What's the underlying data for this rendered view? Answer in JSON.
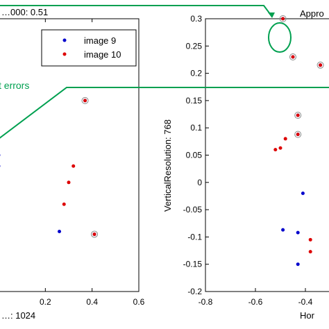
{
  "chart_data": [
    {
      "type": "scatter",
      "xlabel": "…: 1024",
      "title": "…000: 0.51",
      "xlim": [
        0,
        0.6
      ],
      "ylim": [
        -0.2,
        0.3
      ],
      "xticks": [
        "0.2",
        "0.4",
        "0.6"
      ],
      "legend": {
        "placement": "top-right",
        "entries": [
          "image 9",
          "image 10"
        ]
      },
      "series": [
        {
          "name": "image 9",
          "color": "#0000cc",
          "x": [
            0.37,
            0.0,
            0.0,
            0.26,
            0.41
          ],
          "y": [
            0.15,
            0.05,
            0.03,
            -0.09,
            -0.095
          ]
        },
        {
          "name": "image 10",
          "color": "#dd0000",
          "x": [
            0.37,
            0.32,
            0.3,
            0.28,
            0.41
          ],
          "y": [
            0.15,
            0.03,
            0.0,
            -0.04,
            -0.095
          ]
        }
      ],
      "annotation": "t errors",
      "circled_points": [
        [
          0.37,
          0.15
        ],
        [
          0.41,
          -0.095
        ]
      ]
    },
    {
      "type": "scatter",
      "title": "Appro",
      "xlabel": "Hor",
      "ylabel": "VerticalResolution: 768",
      "xlim": [
        -0.8,
        -0.3
      ],
      "ylim": [
        -0.2,
        0.3
      ],
      "xticks": [
        "-0.8",
        "-0.6",
        "-0.4"
      ],
      "yticks": [
        "0.3",
        "0.25",
        "0.2",
        "0.15",
        "0.1",
        "0.05",
        "0",
        "-0.05",
        "-0.1",
        "-0.15",
        "-0.2"
      ],
      "series": [
        {
          "name": "image 9",
          "color": "#0000cc",
          "x": [
            -0.49,
            -0.45,
            -0.34,
            -0.43,
            -0.43,
            -0.41,
            -0.49,
            -0.43,
            -0.43
          ],
          "y": [
            0.3,
            0.23,
            0.215,
            0.123,
            0.088,
            -0.02,
            -0.087,
            -0.092,
            -0.15
          ]
        },
        {
          "name": "image 10",
          "color": "#dd0000",
          "x": [
            -0.49,
            -0.45,
            -0.34,
            -0.43,
            -0.43,
            -0.48,
            -0.5,
            -0.52,
            -0.38,
            -0.38
          ],
          "y": [
            0.3,
            0.23,
            0.215,
            0.123,
            0.088,
            0.08,
            0.063,
            0.06,
            -0.105,
            -0.127
          ]
        }
      ],
      "circled_points": [
        [
          -0.49,
          0.3
        ],
        [
          -0.45,
          0.23
        ],
        [
          -0.34,
          0.215
        ],
        [
          -0.43,
          0.123
        ],
        [
          -0.43,
          0.088
        ]
      ]
    }
  ]
}
